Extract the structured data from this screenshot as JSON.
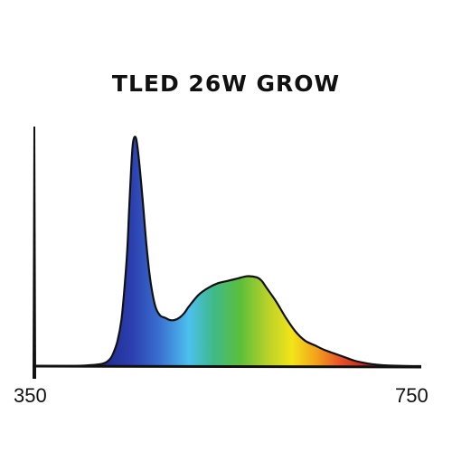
{
  "chart_data": {
    "type": "area",
    "title": "TLED 26W GROW",
    "xlabel": "",
    "ylabel": "",
    "xlim": [
      350,
      750
    ],
    "ylim": [
      0,
      1
    ],
    "x_tick_labels": [
      "350",
      "750"
    ],
    "grid": false,
    "legend": "none",
    "fill": "visible-spectrum gradient",
    "x": [
      350,
      380,
      400,
      420,
      428,
      432,
      436,
      440,
      443,
      446,
      448,
      450,
      452,
      455,
      458,
      462,
      466,
      470,
      475,
      480,
      485,
      490,
      495,
      500,
      505,
      510,
      520,
      530,
      540,
      550,
      560,
      570,
      580,
      585,
      590,
      600,
      610,
      620,
      630,
      640,
      650,
      660,
      670,
      680,
      690,
      700,
      710,
      720,
      735,
      750
    ],
    "values": [
      0,
      0,
      0.002,
      0.01,
      0.03,
      0.06,
      0.11,
      0.2,
      0.33,
      0.5,
      0.68,
      0.85,
      0.97,
      0.99,
      0.9,
      0.72,
      0.52,
      0.37,
      0.26,
      0.22,
      0.21,
      0.2,
      0.2,
      0.21,
      0.23,
      0.26,
      0.31,
      0.34,
      0.36,
      0.37,
      0.38,
      0.39,
      0.385,
      0.37,
      0.34,
      0.28,
      0.21,
      0.15,
      0.11,
      0.09,
      0.07,
      0.055,
      0.04,
      0.025,
      0.015,
      0.008,
      0.004,
      0.002,
      0.0005,
      0
    ]
  }
}
